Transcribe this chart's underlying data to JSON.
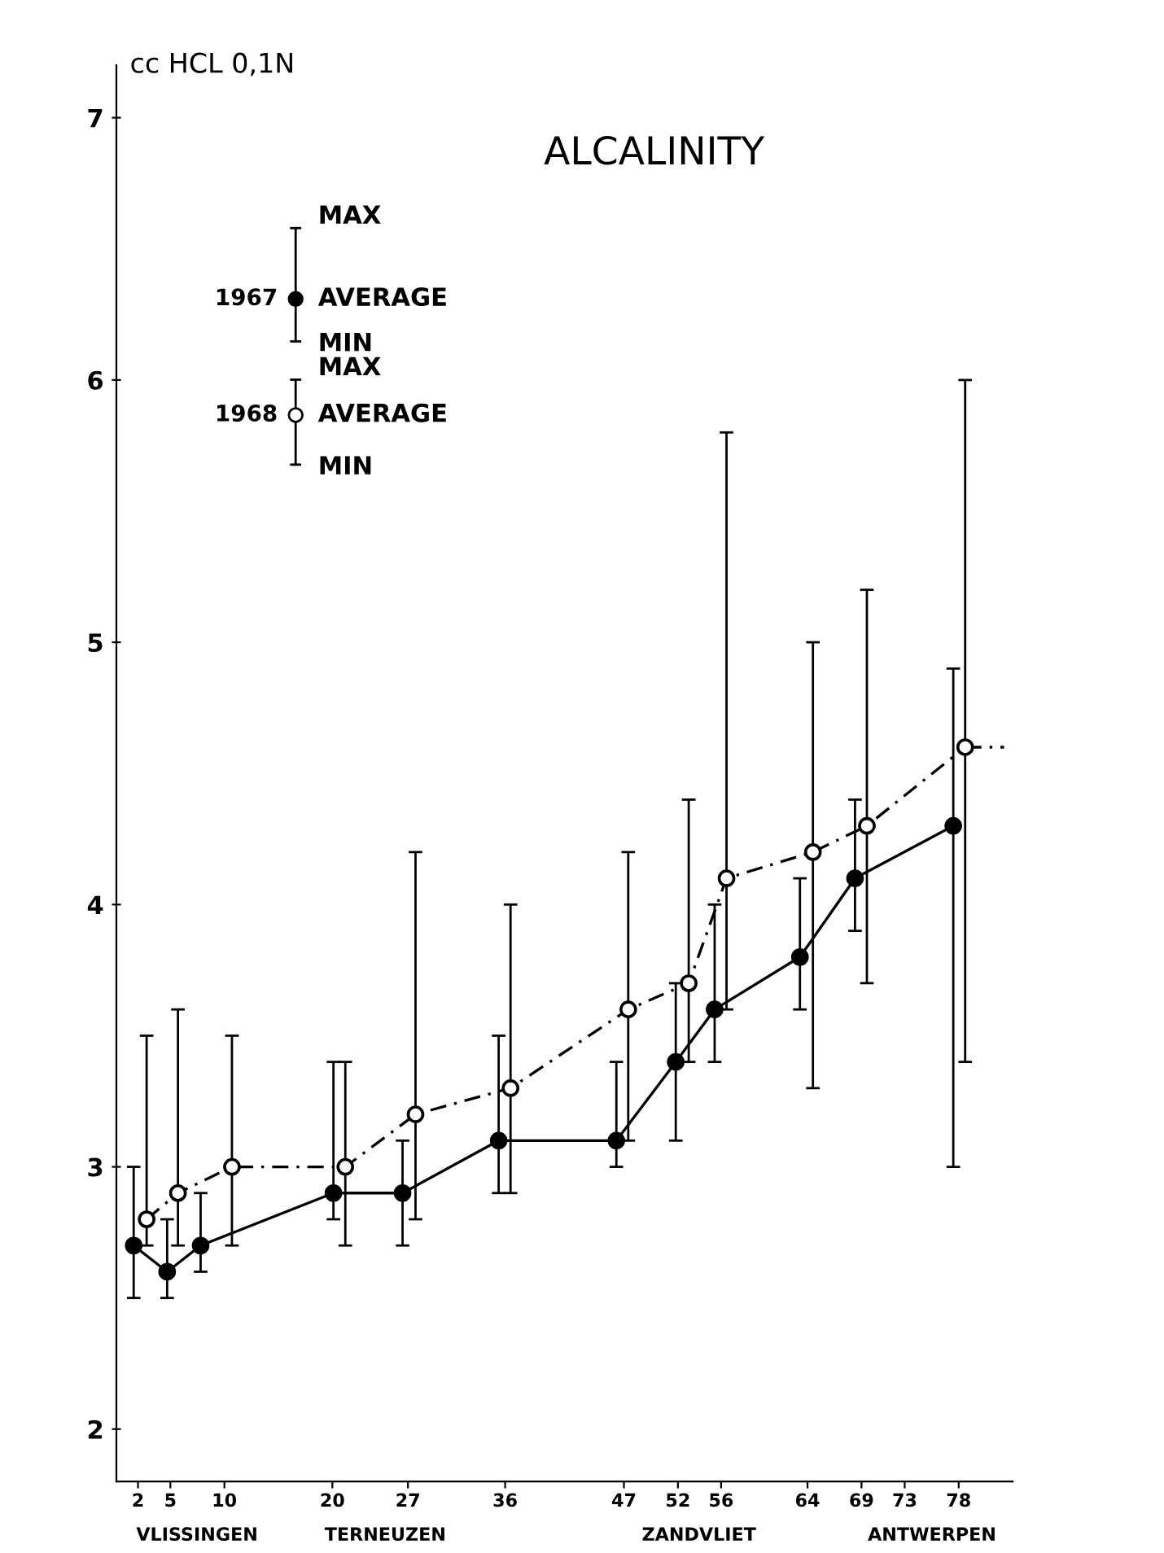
{
  "chart_data": {
    "type": "line",
    "title": "ALCALINITY",
    "ylabel": "cc HCL 0,1N",
    "xlim": [
      0,
      83
    ],
    "ylim": [
      1.8,
      7.2
    ],
    "xticks": [
      2,
      5,
      10,
      20,
      27,
      36,
      47,
      52,
      56,
      64,
      69,
      73,
      78
    ],
    "yticks": [
      2,
      3,
      4,
      5,
      6,
      7
    ],
    "grid": false,
    "legend": "top left",
    "marker": "circle",
    "series": [
      {
        "name": "1967",
        "color": "#000000",
        "line_style": "solid",
        "x": [
          1.6,
          4.7,
          7.8,
          20.1,
          26.5,
          35.4,
          46.3,
          51.8,
          55.4,
          63.3,
          68.4,
          77.5
        ],
        "values": [
          2.7,
          2.6,
          2.7,
          2.9,
          2.9,
          3.1,
          3.1,
          3.4,
          3.6,
          3.8,
          4.1,
          4.3
        ],
        "errors": [
          [
            2.5,
            3.0
          ],
          [
            2.5,
            2.8
          ],
          [
            2.6,
            2.9
          ],
          [
            2.8,
            3.4
          ],
          [
            2.7,
            3.1
          ],
          [
            2.9,
            3.5
          ],
          [
            3.0,
            3.4
          ],
          [
            3.1,
            3.7
          ],
          [
            3.4,
            4.0
          ],
          [
            3.6,
            4.1
          ],
          [
            3.9,
            4.4
          ],
          [
            3.0,
            4.9
          ]
        ]
      },
      {
        "name": "1968",
        "color": "#000000",
        "line_style": "dashed",
        "x": [
          2.8,
          5.7,
          10.7,
          21.2,
          27.7,
          36.5,
          47.4,
          53.0,
          56.5,
          64.5,
          69.5,
          78.6
        ],
        "values": [
          2.8,
          2.9,
          3.0,
          3.0,
          3.2,
          3.3,
          3.6,
          3.7,
          4.1,
          4.2,
          4.3,
          4.6
        ],
        "errors": [
          [
            2.7,
            3.5
          ],
          [
            2.7,
            3.6
          ],
          [
            2.7,
            3.5
          ],
          [
            2.7,
            3.4
          ],
          [
            2.8,
            4.2
          ],
          [
            2.9,
            4.0
          ],
          [
            3.1,
            4.2
          ],
          [
            3.4,
            4.4
          ],
          [
            3.6,
            5.8
          ],
          [
            3.3,
            5.0
          ],
          [
            3.7,
            5.2
          ],
          [
            3.4,
            6.0
          ]
        ]
      },
      {
        "type": "line",
        "color": "#000000",
        "line_style": "dashed",
        "marker": "none",
        "x": [
          78.6,
          82.2
        ],
        "values": [
          4.6,
          4.6
        ]
      }
    ],
    "annotations": [
      "MAX",
      "AVERAGE",
      "MIN",
      "MAX",
      "AVERAGE",
      "MIN",
      "VLISSINGEN",
      "TERNEUZEN",
      "ZANDVLIET",
      "ANTWERPEN"
    ]
  }
}
